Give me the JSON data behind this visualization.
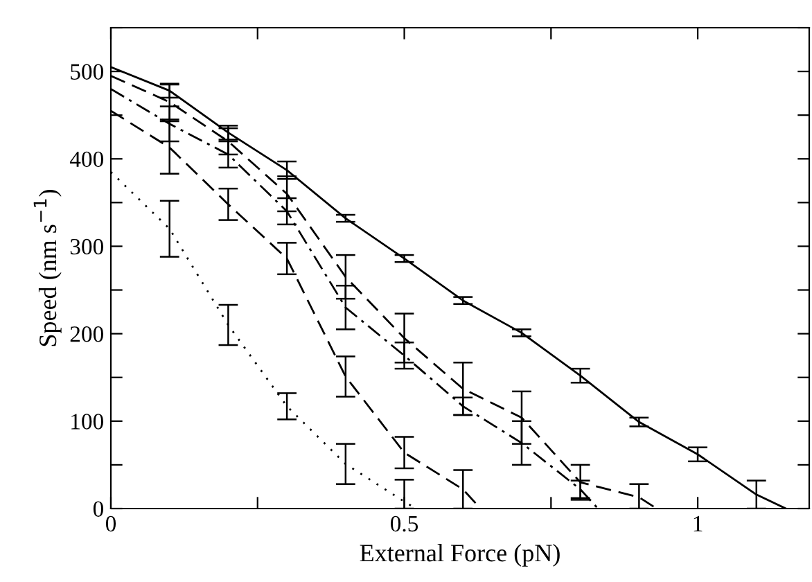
{
  "chart_data": {
    "type": "line",
    "xlabel": "External Force (pN)",
    "ylabel": "Speed (nm s$^{−1}$)",
    "xlim": [
      0,
      1.19
    ],
    "xticks": [
      0,
      0.5,
      1,
      {
        "value": 0.25,
        "label": null
      },
      {
        "value": 0.75,
        "label": null
      }
    ],
    "ylim": [
      0,
      550
    ],
    "yticks": [
      0,
      100,
      200,
      300,
      400,
      500,
      {
        "value": 50,
        "label": null
      },
      {
        "value": 150,
        "label": null
      },
      {
        "value": 250,
        "label": null
      },
      {
        "value": 350,
        "label": null
      },
      {
        "value": 450,
        "label": null
      },
      {
        "value": 550,
        "label": null
      }
    ],
    "grid": false,
    "legend": false,
    "marker": "none",
    "series": [
      {
        "color": "#000000",
        "line_style": "solid",
        "x": [
          0,
          0.1,
          0.2,
          0.3,
          0.4,
          0.5,
          0.6,
          0.7,
          0.8,
          0.9,
          1.0,
          1.1,
          1.15
        ],
        "values": [
          505,
          478,
          430,
          387,
          332,
          286,
          238,
          201,
          152,
          99,
          62,
          16,
          0
        ],
        "errors": [
          null,
          8,
          8,
          10,
          4,
          4,
          4,
          4,
          8,
          5,
          8,
          16,
          null
        ]
      },
      {
        "color": "#000000",
        "line_style": "dashed",
        "x": [
          0,
          0.1,
          0.2,
          0.3,
          0.4,
          0.5,
          0.6,
          0.7,
          0.8,
          0.9,
          0.93
        ],
        "values": [
          495,
          465,
          420,
          360,
          265,
          195,
          137,
          104,
          30,
          13,
          0
        ],
        "errors": [
          null,
          20,
          15,
          20,
          25,
          28,
          30,
          30,
          20,
          [
            0,
            28
          ],
          null
        ]
      },
      {
        "color": "#000000",
        "line_style": "dashdot",
        "x": [
          0,
          0.1,
          0.2,
          0.3,
          0.4,
          0.5,
          0.6,
          0.7,
          0.8,
          0.83
        ],
        "values": [
          480,
          440,
          405,
          340,
          230,
          175,
          117,
          75,
          22,
          0
        ],
        "errors": [
          null,
          20,
          15,
          15,
          25,
          15,
          10,
          25,
          10,
          null
        ]
      },
      {
        "color": "#000000",
        "line_style": "dashed",
        "x": [
          0,
          0.1,
          0.2,
          0.3,
          0.4,
          0.5,
          0.6,
          0.63
        ],
        "values": [
          455,
          413,
          348,
          286,
          151,
          64,
          22,
          0
        ],
        "errors": [
          null,
          30,
          18,
          18,
          23,
          18,
          22,
          null
        ]
      },
      {
        "color": "#000000",
        "line_style": "dotted",
        "x": [
          0,
          0.1,
          0.2,
          0.3,
          0.4,
          0.5,
          0.52
        ],
        "values": [
          385,
          320,
          210,
          117,
          51,
          8,
          0
        ],
        "errors": [
          null,
          32,
          23,
          15,
          23,
          [
            0,
            33
          ],
          null
        ]
      }
    ]
  }
}
